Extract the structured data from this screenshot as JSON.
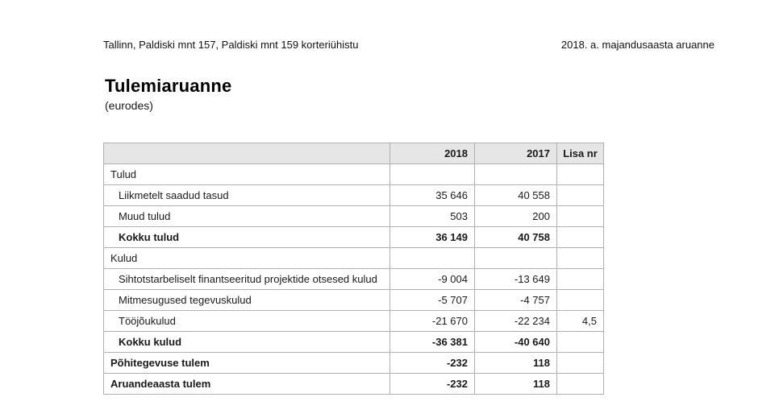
{
  "page": {
    "header_left": "Tallinn, Paldiski mnt 157, Paldiski mnt 159 korteriühistu",
    "header_right": "2018. a. majandusaasta aruanne",
    "title": "Tulemiaruanne",
    "subtitle": "(eurodes)"
  },
  "table": {
    "columns": {
      "label": "",
      "y2018": "2018",
      "y2017": "2017",
      "lisa": "Lisa nr"
    },
    "rows": [
      {
        "label": "Tulud",
        "v2018": "",
        "v2017": "",
        "lisa": ""
      },
      {
        "label": "Liikmetelt saadud tasud",
        "v2018": "35 646",
        "v2017": "40 558",
        "lisa": ""
      },
      {
        "label": "Muud tulud",
        "v2018": "503",
        "v2017": "200",
        "lisa": ""
      },
      {
        "label": "Kokku tulud",
        "v2018": "36 149",
        "v2017": "40 758",
        "lisa": ""
      },
      {
        "label": "Kulud",
        "v2018": "",
        "v2017": "",
        "lisa": ""
      },
      {
        "label": "Sihtotstarbeliselt finantseeritud projektide otsesed kulud",
        "v2018": "-9 004",
        "v2017": "-13 649",
        "lisa": ""
      },
      {
        "label": "Mitmesugused tegevuskulud",
        "v2018": "-5 707",
        "v2017": "-4 757",
        "lisa": ""
      },
      {
        "label": "Tööjõukulud",
        "v2018": "-21 670",
        "v2017": "-22 234",
        "lisa": "4,5"
      },
      {
        "label": "Kokku kulud",
        "v2018": "-36 381",
        "v2017": "-40 640",
        "lisa": ""
      },
      {
        "label": "Põhitegevuse tulem",
        "v2018": "-232",
        "v2017": "118",
        "lisa": ""
      },
      {
        "label": "Aruandeaasta tulem",
        "v2018": "-232",
        "v2017": "118",
        "lisa": ""
      }
    ]
  },
  "colors": {
    "table_header_bg": "#e6e6e6",
    "table_border": "#b0b0b0",
    "text": "#1a1a1a"
  }
}
